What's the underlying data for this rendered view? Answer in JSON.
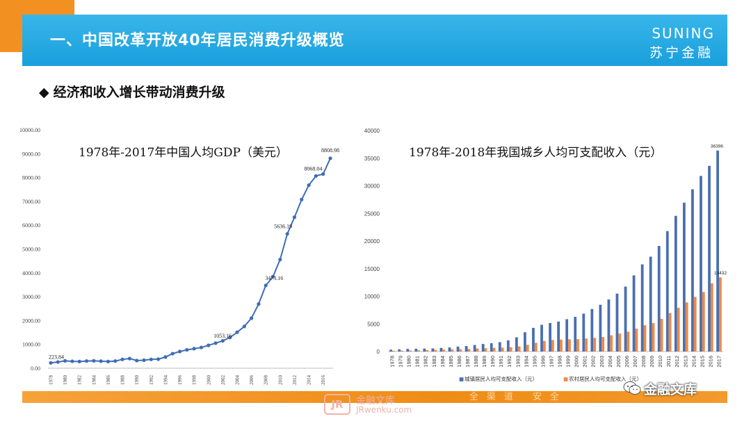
{
  "header": {
    "title": "一、中国改革开放40年居民消费升级概览",
    "logo_en": "SUNING",
    "logo_cn": "苏宁金融"
  },
  "section": {
    "bullet": "◆",
    "text": "经济和收入增长带动消费升级"
  },
  "footer": {
    "slogan": "全渠道 安全",
    "watermark_logo": "JR",
    "watermark_cn": "金融文库",
    "watermark_en": "JRwenku.com",
    "wechat_label": "金融文库"
  },
  "colors": {
    "header_blue": "#1a9fdc",
    "accent_orange": "#f29122",
    "gdp_line": "#3f6db6",
    "urban_bar": "#4a6fb0",
    "rural_bar": "#ec8a48"
  },
  "chart_data": [
    {
      "type": "line",
      "title": "1978年-2017年中国人均GDP（美元）",
      "x": [
        1978,
        1979,
        1980,
        1981,
        1982,
        1983,
        1984,
        1985,
        1986,
        1987,
        1988,
        1989,
        1990,
        1991,
        1992,
        1993,
        1994,
        1995,
        1996,
        1997,
        1998,
        1999,
        2000,
        2001,
        2002,
        2003,
        2004,
        2005,
        2006,
        2007,
        2008,
        2009,
        2010,
        2011,
        2012,
        2013,
        2014,
        2015,
        2016,
        2017
      ],
      "x_tick_labels": [
        "1978",
        "1980",
        "1982",
        "1984",
        "1986",
        "1988",
        "1990",
        "1992",
        "1994",
        "1996",
        "1998",
        "2000",
        "2002",
        "2004",
        "2006",
        "2008",
        "2010",
        "2012",
        "2014",
        "2016"
      ],
      "series": [
        {
          "values": [
            223.84,
            260,
            310,
            290,
            280,
            300,
            310,
            295,
            280,
            300,
            370,
            405,
            320,
            335,
            370,
            380,
            470,
            610,
            700,
            770,
            820,
            870,
            959,
            1053.16,
            1149,
            1288,
            1508,
            1753,
            2099,
            2693,
            3473.16,
            3838,
            4561,
            5636.19,
            6338,
            7077,
            7683,
            8068.04,
            8148,
            8808.98
          ]
        }
      ],
      "data_labels": [
        "223.84",
        "1053.16",
        "3473.16",
        "5636.19",
        "8068.04",
        "8808.98"
      ],
      "data_label_years": [
        1978,
        2001,
        2008,
        2011,
        2015,
        2017
      ],
      "y_ticks": [
        "0.00",
        "1000.00",
        "2000.00",
        "3000.00",
        "4000.00",
        "5000.00",
        "6000.00",
        "7000.00",
        "8000.00",
        "9000.00",
        "10000.00"
      ],
      "ylim": [
        0,
        10000
      ],
      "grid": false
    },
    {
      "type": "bar",
      "title": "1978年-2018年我国城乡人均可支配收入（元）",
      "categories": [
        "1978",
        "1979",
        "1980",
        "1981",
        "1982",
        "1983",
        "1984",
        "1985",
        "1986",
        "1987",
        "1988",
        "1989",
        "1990",
        "1991",
        "1992",
        "1993",
        "1994",
        "1995",
        "1996",
        "1997",
        "1998",
        "1999",
        "2000",
        "2001",
        "2002",
        "2003",
        "2004",
        "2005",
        "2006",
        "2007",
        "2008",
        "2009",
        "2010",
        "2011",
        "2012",
        "2013",
        "2014",
        "2015",
        "2016",
        "2017"
      ],
      "series": [
        {
          "name": "城镇居民人均可支配收入（元）",
          "values": [
            343,
            405,
            478,
            500,
            535,
            565,
            652,
            739,
            900,
            1002,
            1180,
            1374,
            1510,
            1701,
            2027,
            2577,
            3496,
            4283,
            4839,
            5160,
            5425,
            5854,
            6280,
            6860,
            7703,
            8472,
            9422,
            10493,
            11759,
            13786,
            15781,
            17175,
            19109,
            21810,
            24565,
            26955,
            29381,
            31790,
            33616,
            36396
          ]
        },
        {
          "name": "农村居民人均可支配收入（元）",
          "values": [
            134,
            160,
            191,
            223,
            270,
            310,
            355,
            398,
            424,
            463,
            545,
            602,
            686,
            709,
            784,
            922,
            1221,
            1578,
            1926,
            2090,
            2162,
            2210,
            2253,
            2366,
            2476,
            2622,
            2936,
            3255,
            3587,
            4140,
            4761,
            5153,
            5919,
            6977,
            7917,
            8896,
            9892,
            10772,
            12363,
            13432
          ]
        }
      ],
      "data_labels": [
        "36396",
        "13432"
      ],
      "y_ticks": [
        "0",
        "5000",
        "10000",
        "15000",
        "20000",
        "25000",
        "30000",
        "35000",
        "40000"
      ],
      "ylim": [
        0,
        40000
      ],
      "legend_position": "bottom",
      "legend_marker": "■",
      "grid": false
    }
  ]
}
